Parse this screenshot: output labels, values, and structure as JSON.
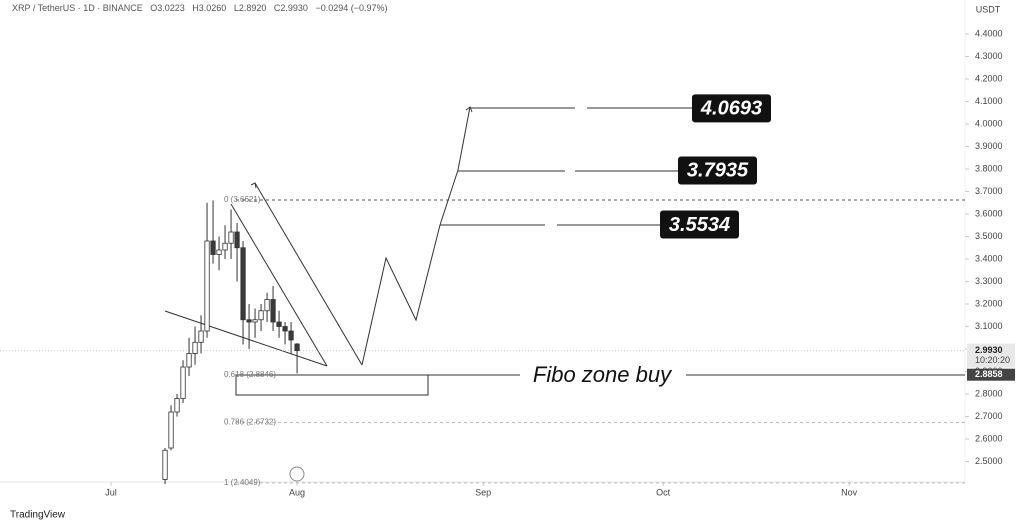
{
  "header": {
    "symbol": "XRP / TetherUS · 1D · BINANCE",
    "open": "O3.0223",
    "high": "H3.0260",
    "low": "L2.8920",
    "close": "C2.9930",
    "change": "−0.0294 (−0.97%)"
  },
  "chart_data": {
    "type": "candlestick",
    "currency": "USDT",
    "x": [
      9,
      10,
      11,
      12,
      13,
      14,
      15,
      16,
      17,
      18,
      19,
      20,
      21,
      22,
      23,
      24,
      25,
      26,
      27,
      28,
      29,
      30,
      31
    ],
    "open": [
      2.42,
      2.56,
      2.72,
      2.78,
      2.92,
      2.98,
      3.03,
      3.08,
      3.48,
      3.42,
      3.44,
      3.47,
      3.52,
      3.45,
      3.13,
      3.12,
      3.13,
      3.17,
      3.22,
      3.12,
      3.1,
      3.08,
      3.0223
    ],
    "high": [
      2.56,
      2.75,
      2.8,
      2.95,
      3.05,
      3.1,
      3.15,
      3.65,
      3.66,
      3.5,
      3.55,
      3.62,
      3.56,
      3.48,
      3.2,
      3.18,
      3.2,
      3.25,
      3.28,
      3.17,
      3.12,
      3.12,
      3.026
    ],
    "low": [
      2.4,
      2.55,
      2.7,
      2.76,
      2.88,
      2.93,
      2.98,
      3.05,
      3.38,
      3.35,
      3.4,
      3.4,
      3.3,
      3.02,
      3.0,
      3.05,
      3.08,
      3.12,
      3.08,
      3.05,
      3.02,
      2.98,
      2.892
    ],
    "close": [
      2.55,
      2.72,
      2.78,
      2.92,
      2.98,
      3.03,
      3.08,
      3.48,
      3.42,
      3.44,
      3.47,
      3.52,
      3.45,
      3.13,
      3.12,
      3.13,
      3.17,
      3.22,
      3.12,
      3.1,
      3.08,
      3.04,
      2.993
    ],
    "up_color": "#ffffff",
    "down_color": "#3a3a3a",
    "xlim": [
      -18.5,
      142.3
    ],
    "xticks": [
      {
        "value": 0,
        "label": "Jul"
      },
      {
        "value": 31,
        "label": "Aug"
      },
      {
        "value": 62,
        "label": "Sep"
      },
      {
        "value": 92,
        "label": "Oct"
      },
      {
        "value": 123,
        "label": "Nov"
      }
    ],
    "ylim": [
      2.409,
      4.551
    ],
    "yticks": [
      {
        "value": 2.5,
        "label": "2.5000"
      },
      {
        "value": 2.6,
        "label": "2.6000"
      },
      {
        "value": 2.7,
        "label": "2.7000"
      },
      {
        "value": 2.8,
        "label": "2.8000"
      },
      {
        "value": 2.9,
        "label": "2.9000"
      },
      {
        "value": 3.0,
        "label": "3.0000"
      },
      {
        "value": 3.1,
        "label": "3.1000"
      },
      {
        "value": 3.2,
        "label": "3.2000"
      },
      {
        "value": 3.3,
        "label": "3.3000"
      },
      {
        "value": 3.4,
        "label": "3.4000"
      },
      {
        "value": 3.5,
        "label": "3.5000"
      },
      {
        "value": 3.6,
        "label": "3.6000"
      },
      {
        "value": 3.7,
        "label": "3.7000"
      },
      {
        "value": 3.8,
        "label": "3.8000"
      },
      {
        "value": 3.9,
        "label": "3.9000"
      },
      {
        "value": 4.0,
        "label": "4.0000"
      },
      {
        "value": 4.1,
        "label": "4.1000"
      },
      {
        "value": 4.2,
        "label": "4.2000"
      },
      {
        "value": 4.3,
        "label": "4.3000"
      },
      {
        "value": 4.4,
        "label": "4.4000"
      }
    ],
    "last_price": {
      "value": 2.993,
      "label": "2.9930"
    },
    "countdown": "10:20:20",
    "zone_price": {
      "value": 2.8858,
      "label": "2.8858"
    },
    "targets": [
      3.5534,
      3.7935,
      4.0693
    ],
    "fib_levels": [
      {
        "value": 3.6621,
        "label": "0 (3.6621)"
      },
      {
        "value": 2.8846,
        "label": "0.618 (2.8846)"
      },
      {
        "value": 2.6732,
        "label": "0.786 (2.6732)"
      },
      {
        "value": 2.4049,
        "label": "1 (2.4049)"
      }
    ],
    "zone_label": "Fibo zone buy"
  },
  "branding": "TradingView"
}
